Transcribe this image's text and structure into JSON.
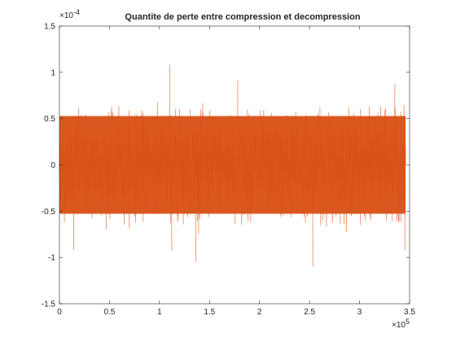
{
  "chart_data": {
    "type": "line",
    "title": "Quantite de perte entre compression et decompression",
    "xlabel": "",
    "ylabel": "",
    "xlim": [
      0,
      350000
    ],
    "ylim": [
      -0.00015,
      0.00015
    ],
    "x_ticks": [
      0,
      50000,
      100000,
      150000,
      200000,
      250000,
      300000,
      350000
    ],
    "x_tick_labels": [
      "0",
      "0.5",
      "1",
      "1.5",
      "2",
      "2.5",
      "3",
      "3.5"
    ],
    "x_exponent_label": "×10",
    "x_exponent_power": "5",
    "y_ticks": [
      -0.00015,
      -0.0001,
      -5e-05,
      0,
      5e-05,
      0.0001,
      0.00015
    ],
    "y_tick_labels": [
      "-1.5",
      "-1",
      "-0.5",
      "0",
      "0.5",
      "1",
      "1.5"
    ],
    "y_exponent_label": "×10",
    "y_exponent_power": "-4",
    "grid": false,
    "legend": "none",
    "series": [
      {
        "color": "#D95319",
        "x_start": 0,
        "x_end": 346000,
        "description_of_values": "dense noise signal",
        "typical_band": [
          -6e-05,
          6e-05
        ],
        "peak_max": 0.000108,
        "peak_min": -0.00011
      }
    ]
  }
}
